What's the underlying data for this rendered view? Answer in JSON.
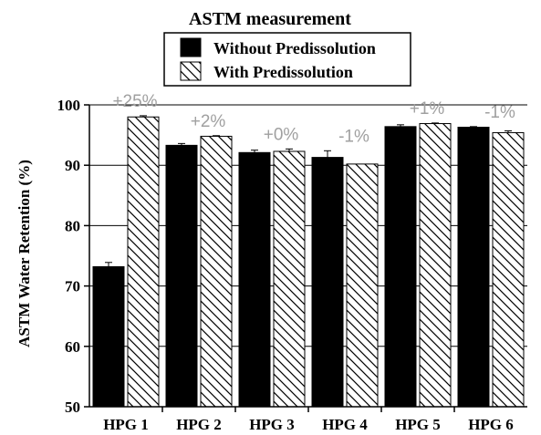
{
  "chart_data": {
    "type": "bar",
    "title": "ASTM measurement",
    "ylabel": "ASTM Water Retention (%)",
    "xlabel": "",
    "ylim": [
      50,
      100
    ],
    "yticks": [
      50,
      60,
      70,
      80,
      90,
      100
    ],
    "grid": true,
    "legend_position": "top-center",
    "categories": [
      "HPG 1",
      "HPG 2",
      "HPG 3",
      "HPG 4",
      "HPG 5",
      "HPG 6"
    ],
    "series": [
      {
        "name": "Without Predissolution",
        "fill": "solid",
        "color": "#000000",
        "values": [
          73.2,
          93.3,
          92.1,
          91.3,
          96.4,
          96.3
        ],
        "errors": [
          0.7,
          0.3,
          0.4,
          1.1,
          0.3,
          0.1
        ]
      },
      {
        "name": "With Predissolution",
        "fill": "hatched",
        "color": "#ffffff",
        "values": [
          98.0,
          94.8,
          92.3,
          90.2,
          96.9,
          95.4
        ],
        "errors": [
          0.2,
          0.1,
          0.4,
          0.0,
          0.1,
          0.3
        ]
      }
    ],
    "annotations": [
      "+25%",
      "+2%",
      "+0%",
      "-1%",
      "+1%",
      "-1%"
    ],
    "annotation_color": "#a0a0a0"
  }
}
